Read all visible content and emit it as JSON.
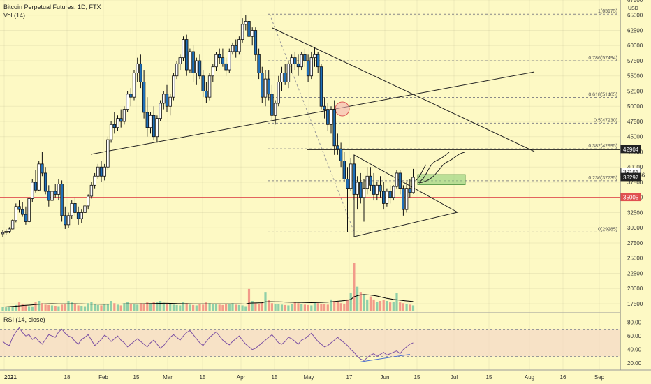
{
  "header": {
    "title": "Bitcoin Perpetual Futures, 1D, FTX",
    "vol_label": "Vol (14)",
    "rsi_label": "RSI (14, close)"
  },
  "currency": "USD",
  "colors": {
    "background": "#fdf9c4",
    "up": "#ffffff",
    "down": "#1e6fb8",
    "candle_outline": "#111111",
    "vol_up": "#8fcfa8",
    "vol_down": "#f29b8a",
    "volume_ma": "#000000",
    "rsi_line": "#7b4fa3",
    "rsi_band": "#f3d9c8",
    "red_line": "#e05050",
    "green_box": "#8fcf7a",
    "fib_line": "#888888",
    "tag_dark": "#222222",
    "tag_red": "#e05050"
  },
  "chart_data": {
    "type": "candlestick",
    "title": "Bitcoin Perpetual Futures, 1D, FTX",
    "x_ticks": [
      "2021",
      "18",
      "Feb",
      "15",
      "Mar",
      "15",
      "Apr",
      "15",
      "May",
      "17",
      "Jun",
      "15",
      "Jul",
      "15",
      "Aug",
      "16",
      "Sep"
    ],
    "y_ticks": [
      17500,
      20000,
      22500,
      25000,
      27500,
      30000,
      32500,
      35000,
      37500,
      40000,
      42500,
      45000,
      47500,
      50000,
      52500,
      55000,
      57500,
      60000,
      62500,
      65000,
      67500
    ],
    "ylim": [
      16000,
      67500
    ],
    "key_levels": [
      {
        "label": "42904",
        "value": 42904
      },
      {
        "label": "39161",
        "value": 39161
      },
      {
        "label": "15:43:36",
        "value": 38700
      },
      {
        "label": "38297",
        "value": 38297
      },
      {
        "label": "35005",
        "value": 35005
      }
    ],
    "fib_levels": [
      {
        "label": "1(65175)",
        "value": 65175
      },
      {
        "label": "0.786(57494)",
        "value": 57494
      },
      {
        "label": "0.618(51465)",
        "value": 51465
      },
      {
        "label": "0.5(47230)",
        "value": 47230
      },
      {
        "label": "0.382(42995)",
        "value": 42995
      },
      {
        "label": "0.236(37735)",
        "value": 37735
      },
      {
        "label": "0(29285)",
        "value": 29285
      }
    ],
    "rsi": {
      "levels": [
        "80.00",
        "60.00",
        "40.00",
        "20.00"
      ],
      "upper": 70,
      "lower": 30,
      "ylim": [
        12,
        92
      ],
      "values": [
        52,
        48,
        46,
        58,
        66,
        72,
        65,
        60,
        62,
        55,
        58,
        52,
        48,
        55,
        62,
        60,
        58,
        66,
        70,
        64,
        60,
        58,
        52,
        48,
        55,
        58,
        62,
        54,
        46,
        50,
        55,
        61,
        58,
        52,
        56,
        60,
        54,
        50,
        44,
        48,
        52,
        56,
        52,
        48,
        44,
        50,
        54,
        48,
        42,
        46,
        52,
        58,
        62,
        58,
        54,
        60,
        65,
        68,
        62,
        56,
        50,
        46,
        52,
        58,
        62,
        66,
        60,
        54,
        50,
        47,
        52,
        56,
        60,
        54,
        48,
        44,
        40,
        42,
        46,
        50,
        54,
        58,
        62,
        56,
        50,
        48,
        52,
        58,
        56,
        52,
        48,
        54,
        56,
        60,
        64,
        58,
        52,
        48,
        44,
        46,
        50,
        54,
        58,
        54,
        50,
        46,
        40,
        36,
        30,
        26,
        24,
        28,
        32,
        34,
        30,
        33,
        36,
        32,
        34,
        36,
        38,
        34,
        40,
        44,
        48,
        50
      ]
    },
    "volume": {
      "ylim": [
        0,
        700
      ],
      "values": [
        60,
        55,
        62,
        70,
        85,
        120,
        95,
        80,
        70,
        68,
        120,
        140,
        110,
        90,
        85,
        80,
        75,
        70,
        90,
        95,
        140,
        120,
        100,
        80,
        75,
        70,
        110,
        130,
        100,
        85,
        80,
        90,
        95,
        140,
        110,
        90,
        80,
        110,
        130,
        100,
        95,
        90,
        110,
        100,
        120,
        110,
        130,
        120,
        140,
        115,
        100,
        95,
        90,
        85,
        80,
        130,
        110,
        90,
        85,
        80,
        95,
        90,
        120,
        110,
        100,
        95,
        90,
        85,
        100,
        95,
        110,
        90,
        85,
        80,
        70,
        300,
        140,
        110,
        100,
        130,
        260,
        150,
        110,
        100,
        95,
        90,
        85,
        80,
        100,
        120,
        110,
        95,
        90,
        85,
        80,
        130,
        110,
        100,
        95,
        90,
        160,
        140,
        130,
        110,
        100,
        160,
        250,
        650,
        330,
        260,
        220,
        160,
        200,
        160,
        130,
        140,
        150,
        140,
        120,
        130,
        250,
        120,
        110,
        100,
        90,
        80
      ],
      "ma": [
        60,
        62,
        64,
        67,
        70,
        74,
        78,
        81,
        84,
        88,
        92,
        96,
        99,
        101,
        102,
        103,
        102,
        101,
        100,
        100,
        101,
        102,
        102,
        101,
        100,
        99,
        98,
        97,
        97,
        97,
        96,
        96,
        97,
        98,
        98,
        98,
        98,
        99,
        100,
        100,
        100,
        100,
        101,
        102,
        103,
        104,
        105,
        106,
        107,
        108,
        108,
        107,
        106,
        105,
        104,
        103,
        103,
        102,
        101,
        100,
        100,
        100,
        101,
        101,
        101,
        100,
        100,
        100,
        100,
        100,
        100,
        100,
        100,
        99,
        98,
        110,
        112,
        113,
        114,
        116,
        128,
        130,
        130,
        129,
        128,
        127,
        125,
        123,
        122,
        121,
        120,
        120,
        119,
        118,
        117,
        118,
        119,
        120,
        122,
        124,
        128,
        132,
        136,
        140,
        145,
        150,
        160,
        195,
        210,
        220,
        225,
        222,
        218,
        212,
        205,
        195,
        185,
        175,
        168,
        160,
        155,
        150,
        145,
        140,
        136,
        132
      ]
    },
    "candles": [
      [
        29000,
        29600,
        28500,
        29200
      ],
      [
        29200,
        29800,
        28800,
        29400
      ],
      [
        29400,
        30100,
        29100,
        29800
      ],
      [
        29800,
        31500,
        29700,
        31200
      ],
      [
        31200,
        34000,
        30900,
        33500
      ],
      [
        33500,
        34500,
        32500,
        33000
      ],
      [
        33000,
        34200,
        31800,
        32200
      ],
      [
        32200,
        33500,
        30500,
        31000
      ],
      [
        31000,
        35000,
        30800,
        34800
      ],
      [
        34800,
        38000,
        34200,
        37500
      ],
      [
        37500,
        39500,
        35800,
        36200
      ],
      [
        36200,
        41000,
        36000,
        40500
      ],
      [
        40500,
        42500,
        38500,
        39000
      ],
      [
        39000,
        40000,
        35500,
        36000
      ],
      [
        36000,
        37000,
        33500,
        34500
      ],
      [
        34500,
        36500,
        33800,
        36000
      ],
      [
        36000,
        37200,
        35000,
        35500
      ],
      [
        35500,
        38000,
        34500,
        37200
      ],
      [
        37200,
        37800,
        31000,
        32000
      ],
      [
        32000,
        33500,
        29800,
        30500
      ],
      [
        30500,
        32500,
        30000,
        32000
      ],
      [
        32000,
        34500,
        31500,
        34000
      ],
      [
        34000,
        35000,
        32000,
        32500
      ],
      [
        32500,
        33500,
        30500,
        31500
      ],
      [
        31500,
        33000,
        30800,
        32500
      ],
      [
        32500,
        34000,
        32000,
        33600
      ],
      [
        33600,
        35500,
        33000,
        35200
      ],
      [
        35200,
        37500,
        34800,
        37000
      ],
      [
        37000,
        39000,
        36500,
        38500
      ],
      [
        38500,
        40500,
        38000,
        40000
      ],
      [
        40000,
        41000,
        37500,
        38500
      ],
      [
        38500,
        40500,
        37800,
        40000
      ],
      [
        40000,
        45000,
        39500,
        44500
      ],
      [
        44500,
        47500,
        44000,
        47000
      ],
      [
        47000,
        49000,
        45500,
        46500
      ],
      [
        46500,
        48500,
        46000,
        48000
      ],
      [
        48000,
        49500,
        46500,
        47500
      ],
      [
        47500,
        50000,
        47000,
        49500
      ],
      [
        49500,
        52500,
        49000,
        52000
      ],
      [
        52000,
        53000,
        50000,
        51500
      ],
      [
        51500,
        56000,
        51000,
        55500
      ],
      [
        55500,
        58000,
        54000,
        57000
      ],
      [
        57000,
        58500,
        53000,
        54000
      ],
      [
        54000,
        56000,
        48000,
        49000
      ],
      [
        49000,
        51500,
        45000,
        46500
      ],
      [
        46500,
        49000,
        45500,
        48500
      ],
      [
        48500,
        50000,
        44500,
        45000
      ],
      [
        45000,
        48500,
        44000,
        48000
      ],
      [
        48000,
        51000,
        47500,
        50500
      ],
      [
        50500,
        52500,
        49500,
        52000
      ],
      [
        52000,
        53500,
        49000,
        50000
      ],
      [
        50000,
        52000,
        48500,
        51500
      ],
      [
        51500,
        55500,
        51000,
        55000
      ],
      [
        55000,
        57500,
        54500,
        57000
      ],
      [
        57000,
        58500,
        56000,
        58000
      ],
      [
        58000,
        61500,
        57500,
        61000
      ],
      [
        61000,
        61800,
        55000,
        56000
      ],
      [
        56000,
        59500,
        55500,
        59000
      ],
      [
        59000,
        60000,
        54000,
        55500
      ],
      [
        55500,
        58000,
        53500,
        57500
      ],
      [
        57500,
        58500,
        54500,
        55000
      ],
      [
        55000,
        56000,
        51500,
        52500
      ],
      [
        52500,
        54000,
        50500,
        51500
      ],
      [
        51500,
        55500,
        51000,
        55000
      ],
      [
        55000,
        57000,
        54000,
        56500
      ],
      [
        56500,
        59000,
        55800,
        58500
      ],
      [
        58500,
        59500,
        57000,
        58000
      ],
      [
        58000,
        59500,
        56500,
        57000
      ],
      [
        57000,
        58000,
        55000,
        56000
      ],
      [
        56000,
        59500,
        55500,
        59000
      ],
      [
        59000,
        60500,
        58500,
        60000
      ],
      [
        60000,
        61000,
        58000,
        59000
      ],
      [
        59000,
        61500,
        58500,
        61000
      ],
      [
        61000,
        64500,
        60500,
        63500
      ],
      [
        63500,
        65000,
        62500,
        64000
      ],
      [
        64000,
        64800,
        60500,
        61500
      ],
      [
        61500,
        63000,
        60000,
        62500
      ],
      [
        62500,
        63000,
        57500,
        58500
      ],
      [
        58500,
        59500,
        54500,
        55500
      ],
      [
        55500,
        56500,
        50500,
        51500
      ],
      [
        51500,
        56000,
        50000,
        54500
      ],
      [
        54500,
        56000,
        51000,
        52000
      ],
      [
        52000,
        53500,
        47500,
        48500
      ],
      [
        48500,
        51000,
        47000,
        50500
      ],
      [
        50500,
        55000,
        50000,
        54000
      ],
      [
        54000,
        56500,
        52500,
        55500
      ],
      [
        55500,
        57000,
        53500,
        54000
      ],
      [
        54000,
        57500,
        53000,
        57000
      ],
      [
        57000,
        58500,
        55500,
        58000
      ],
      [
        58000,
        59000,
        56000,
        57000
      ],
      [
        57000,
        58500,
        55000,
        56500
      ],
      [
        56500,
        59000,
        56000,
        58500
      ],
      [
        58500,
        59500,
        56500,
        57500
      ],
      [
        57500,
        58500,
        54000,
        55000
      ],
      [
        55000,
        59000,
        54500,
        58000
      ],
      [
        58000,
        59800,
        56500,
        58500
      ],
      [
        58500,
        59000,
        55500,
        56500
      ],
      [
        56500,
        57000,
        49500,
        50000
      ],
      [
        50000,
        51500,
        48000,
        49500
      ],
      [
        49500,
        50500,
        46000,
        47000
      ],
      [
        47000,
        50000,
        45500,
        49500
      ],
      [
        49500,
        51000,
        42000,
        43500
      ],
      [
        43500,
        45500,
        42000,
        43000
      ],
      [
        43000,
        44000,
        40000,
        41000
      ],
      [
        41000,
        42500,
        37500,
        38000
      ],
      [
        38000,
        40000,
        29285,
        36500
      ],
      [
        36500,
        41500,
        36000,
        40500
      ],
      [
        40500,
        42000,
        34500,
        35500
      ],
      [
        35500,
        38500,
        33000,
        37500
      ],
      [
        37500,
        39000,
        34000,
        35000
      ],
      [
        35000,
        38000,
        31000,
        36500
      ],
      [
        36500,
        40000,
        35500,
        38500
      ],
      [
        38500,
        40000,
        36000,
        37000
      ],
      [
        37000,
        39000,
        34500,
        35500
      ],
      [
        35500,
        37500,
        34500,
        37000
      ],
      [
        37000,
        38500,
        35000,
        36000
      ],
      [
        36000,
        37500,
        33000,
        34000
      ],
      [
        34000,
        36500,
        33500,
        36000
      ],
      [
        36000,
        37000,
        34000,
        35000
      ],
      [
        35000,
        37000,
        34500,
        36800
      ],
      [
        36800,
        39500,
        36500,
        39000
      ],
      [
        39000,
        39500,
        35500,
        36500
      ],
      [
        36500,
        37000,
        32000,
        33000
      ],
      [
        33000,
        37500,
        32500,
        36500
      ],
      [
        36500,
        38000,
        35000,
        35800
      ],
      [
        35800,
        39700,
        35600,
        38297
      ]
    ]
  }
}
